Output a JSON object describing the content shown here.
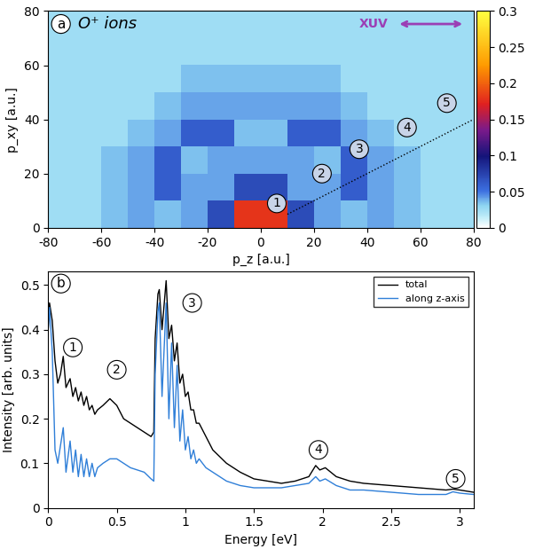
{
  "chart_data": [
    {
      "type": "heatmap",
      "panel_label": "a",
      "title": "O⁺ ions",
      "beam_label": "XUV",
      "x_label": "p_z [a.u.]",
      "y_label": "p_xy [a.u.]",
      "xlim": [
        -80,
        80
      ],
      "ylim": [
        0,
        80
      ],
      "xticks": [
        -80,
        -60,
        -40,
        -20,
        0,
        20,
        40,
        60,
        80
      ],
      "yticks": [
        0,
        20,
        40,
        60,
        80
      ],
      "cells": [
        [
          0.025,
          0.025,
          0.035,
          0.04,
          0.035,
          0.04,
          0.07,
          0.18,
          0.18,
          0.07,
          0.04,
          0.035,
          0.04,
          0.035,
          0.025,
          0.025
        ],
        [
          0.025,
          0.025,
          0.035,
          0.04,
          0.06,
          0.04,
          0.04,
          0.07,
          0.07,
          0.04,
          0.04,
          0.06,
          0.04,
          0.035,
          0.025,
          0.025
        ],
        [
          0.025,
          0.025,
          0.035,
          0.04,
          0.06,
          0.035,
          0.04,
          0.04,
          0.04,
          0.04,
          0.035,
          0.06,
          0.04,
          0.035,
          0.025,
          0.025
        ],
        [
          0.025,
          0.025,
          0.025,
          0.035,
          0.04,
          0.06,
          0.06,
          0.035,
          0.035,
          0.06,
          0.06,
          0.04,
          0.035,
          0.025,
          0.025,
          0.025
        ],
        [
          0.025,
          0.025,
          0.025,
          0.025,
          0.035,
          0.04,
          0.04,
          0.04,
          0.04,
          0.04,
          0.04,
          0.035,
          0.025,
          0.025,
          0.025,
          0.025
        ],
        [
          0.025,
          0.025,
          0.025,
          0.025,
          0.025,
          0.035,
          0.035,
          0.035,
          0.035,
          0.035,
          0.035,
          0.025,
          0.025,
          0.025,
          0.025,
          0.025
        ],
        [
          0.025,
          0.025,
          0.025,
          0.025,
          0.025,
          0.025,
          0.025,
          0.025,
          0.025,
          0.025,
          0.025,
          0.025,
          0.025,
          0.025,
          0.025,
          0.025
        ],
        [
          0.025,
          0.025,
          0.025,
          0.025,
          0.025,
          0.025,
          0.025,
          0.025,
          0.025,
          0.025,
          0.025,
          0.025,
          0.025,
          0.025,
          0.025,
          0.025
        ]
      ],
      "colorbar_range": [
        0,
        0.3
      ],
      "colorbar_ticks": [
        0,
        0.05,
        0.1,
        0.15,
        0.2,
        0.25,
        0.3
      ],
      "guide": {
        "x": [
          10,
          80
        ],
        "y": [
          5,
          40
        ],
        "line_style": "dotted"
      },
      "annotations": [
        {
          "text": "1",
          "x": 6,
          "y": 9
        },
        {
          "text": "2",
          "x": 23,
          "y": 20
        },
        {
          "text": "3",
          "x": 37,
          "y": 29
        },
        {
          "text": "4",
          "x": 55,
          "y": 37
        },
        {
          "text": "5",
          "x": 70,
          "y": 46
        }
      ]
    },
    {
      "type": "line",
      "panel_label": "b",
      "x_label": "Energy [eV]",
      "y_label": "Intensity [arb. units]",
      "xlim": [
        0,
        3.1
      ],
      "ylim": [
        0,
        0.53
      ],
      "xticks": [
        0,
        0.5,
        1,
        1.5,
        2,
        2.5,
        3
      ],
      "yticks": [
        0,
        0.1,
        0.2,
        0.3,
        0.4,
        0.5
      ],
      "legend": "upper right",
      "x": [
        0.0,
        0.01,
        0.03,
        0.05,
        0.07,
        0.09,
        0.11,
        0.13,
        0.16,
        0.18,
        0.2,
        0.22,
        0.24,
        0.26,
        0.28,
        0.3,
        0.32,
        0.34,
        0.36,
        0.4,
        0.45,
        0.5,
        0.55,
        0.6,
        0.65,
        0.7,
        0.75,
        0.77,
        0.78,
        0.8,
        0.81,
        0.83,
        0.86,
        0.88,
        0.9,
        0.92,
        0.94,
        0.96,
        0.98,
        1.0,
        1.02,
        1.04,
        1.06,
        1.08,
        1.1,
        1.15,
        1.2,
        1.3,
        1.4,
        1.5,
        1.6,
        1.7,
        1.8,
        1.9,
        1.95,
        1.98,
        2.02,
        2.1,
        2.2,
        2.3,
        2.5,
        2.7,
        2.9,
        2.95,
        3.0,
        3.1
      ],
      "series": [
        {
          "name": "total",
          "color": "#000000",
          "line_style": "solid",
          "values": [
            0.4,
            0.46,
            0.42,
            0.33,
            0.28,
            0.3,
            0.34,
            0.27,
            0.29,
            0.25,
            0.27,
            0.24,
            0.26,
            0.23,
            0.25,
            0.22,
            0.23,
            0.21,
            0.22,
            0.23,
            0.245,
            0.23,
            0.2,
            0.19,
            0.18,
            0.17,
            0.16,
            0.17,
            0.38,
            0.48,
            0.49,
            0.4,
            0.51,
            0.38,
            0.41,
            0.33,
            0.37,
            0.28,
            0.3,
            0.25,
            0.26,
            0.22,
            0.22,
            0.19,
            0.19,
            0.16,
            0.13,
            0.1,
            0.08,
            0.065,
            0.06,
            0.055,
            0.06,
            0.07,
            0.095,
            0.085,
            0.09,
            0.07,
            0.06,
            0.055,
            0.05,
            0.045,
            0.04,
            0.042,
            0.04,
            0.035
          ]
        },
        {
          "name": "along z-axis",
          "color": "#2f7fd8",
          "line_style": "solid",
          "values": [
            0.4,
            0.45,
            0.35,
            0.13,
            0.1,
            0.14,
            0.18,
            0.08,
            0.15,
            0.08,
            0.13,
            0.07,
            0.12,
            0.07,
            0.11,
            0.07,
            0.1,
            0.07,
            0.09,
            0.1,
            0.11,
            0.11,
            0.1,
            0.09,
            0.085,
            0.08,
            0.065,
            0.06,
            0.3,
            0.44,
            0.46,
            0.25,
            0.46,
            0.2,
            0.37,
            0.18,
            0.32,
            0.15,
            0.22,
            0.13,
            0.16,
            0.11,
            0.13,
            0.1,
            0.11,
            0.09,
            0.08,
            0.06,
            0.05,
            0.045,
            0.045,
            0.045,
            0.05,
            0.055,
            0.07,
            0.06,
            0.065,
            0.05,
            0.04,
            0.04,
            0.035,
            0.03,
            0.03,
            0.036,
            0.033,
            0.03
          ]
        }
      ],
      "annotations": [
        {
          "text": "1",
          "x": 0.18,
          "y": 0.36
        },
        {
          "text": "2",
          "x": 0.5,
          "y": 0.31
        },
        {
          "text": "3",
          "x": 1.05,
          "y": 0.46
        },
        {
          "text": "4",
          "x": 1.97,
          "y": 0.13
        },
        {
          "text": "5",
          "x": 2.97,
          "y": 0.065
        }
      ]
    }
  ]
}
